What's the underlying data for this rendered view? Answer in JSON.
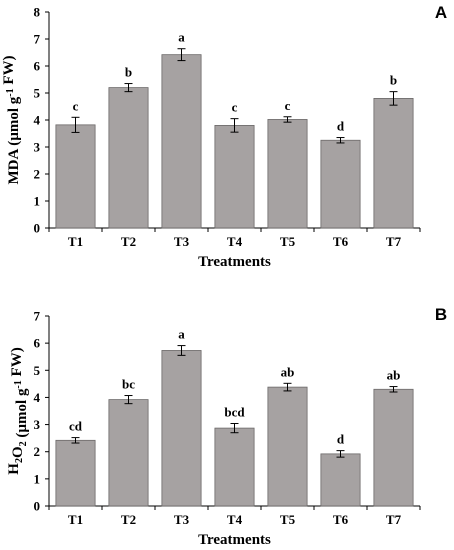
{
  "chart_data": [
    {
      "type": "bar",
      "panel_label": "A",
      "categories": [
        "T1",
        "T2",
        "T3",
        "T4",
        "T5",
        "T6",
        "T7"
      ],
      "values": [
        3.82,
        5.2,
        6.42,
        3.8,
        4.02,
        3.25,
        4.8
      ],
      "errors": [
        0.28,
        0.15,
        0.22,
        0.25,
        0.1,
        0.1,
        0.25
      ],
      "letters": [
        "c",
        "b",
        "a",
        "c",
        "c",
        "d",
        "b"
      ],
      "xlabel": "Treatments",
      "ylabel": "MDA (µmol g⁻¹ FW)",
      "ylim": [
        0,
        8
      ],
      "yticks": [
        0,
        1,
        2,
        3,
        4,
        5,
        6,
        7,
        8
      ],
      "bar_color": "#a6a2a2"
    },
    {
      "type": "bar",
      "panel_label": "B",
      "categories": [
        "T1",
        "T2",
        "T3",
        "T4",
        "T5",
        "T6",
        "T7"
      ],
      "values": [
        2.42,
        3.92,
        5.73,
        2.87,
        4.38,
        1.92,
        4.3
      ],
      "errors": [
        0.1,
        0.15,
        0.18,
        0.17,
        0.14,
        0.12,
        0.1
      ],
      "letters": [
        "cd",
        "bc",
        "a",
        "bcd",
        "ab",
        "d",
        "ab"
      ],
      "xlabel": "Treatments",
      "ylabel": "H₂O₂ (µmol g⁻¹ FW)",
      "ylim": [
        0,
        7
      ],
      "yticks": [
        0,
        1,
        2,
        3,
        4,
        5,
        6,
        7
      ],
      "bar_color": "#a6a2a2"
    }
  ]
}
